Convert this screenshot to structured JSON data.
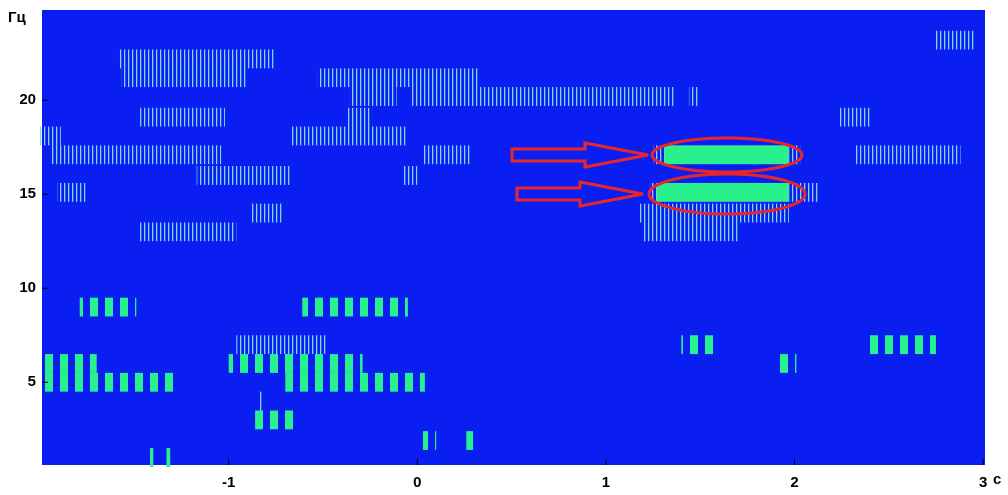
{
  "chart_data": {
    "type": "spectrogram",
    "x_unit": "с",
    "y_unit": "Гц",
    "xlim": [
      -1.99,
      3.01
    ],
    "ylim": [
      0.6,
      24.8
    ],
    "xticks": [
      -1,
      0,
      1,
      2,
      3
    ],
    "yticks": [
      5,
      10,
      15,
      20
    ],
    "background": "#0b1ef2",
    "band_height": 1,
    "stripe_color": "#7fd8e6",
    "bar_color": "#28f08c",
    "solid_color": "#28f08c",
    "stripe_spans": [
      [
        2.75,
        2.96,
        23.2
      ],
      [
        -1.59,
        -0.76,
        22.2
      ],
      [
        -1.57,
        -0.91,
        21.2
      ],
      [
        -0.53,
        0.32,
        21.2
      ],
      [
        -0.36,
        -0.11,
        20.2
      ],
      [
        -0.04,
        1.36,
        20.2
      ],
      [
        1.44,
        1.49,
        20.2
      ],
      [
        -1.47,
        -1.02,
        19.1
      ],
      [
        -0.37,
        -0.24,
        19.1
      ],
      [
        2.24,
        2.4,
        19.1
      ],
      [
        -2.01,
        -1.89,
        18.1
      ],
      [
        -0.67,
        -0.05,
        18.1
      ],
      [
        -1.95,
        -1.04,
        17.1
      ],
      [
        0.03,
        0.29,
        17.1
      ],
      [
        1.25,
        2.03,
        17.1
      ],
      [
        2.32,
        2.88,
        17.1
      ],
      [
        -1.17,
        -0.67,
        16.0
      ],
      [
        -0.08,
        0.0,
        16.0
      ],
      [
        -1.91,
        -1.76,
        15.1
      ],
      [
        1.23,
        2.13,
        15.1
      ],
      [
        -0.88,
        -0.72,
        14.0
      ],
      [
        1.17,
        1.97,
        14.0
      ],
      [
        -1.48,
        -0.96,
        13.0
      ],
      [
        1.2,
        1.71,
        13.0
      ],
      [
        -0.96,
        -0.48,
        7.0
      ],
      [
        -0.84,
        -0.82,
        4.0
      ]
    ],
    "bar_spans": [
      [
        -1.79,
        -1.49,
        9.0
      ],
      [
        -0.61,
        -0.05,
        9.0
      ],
      [
        1.4,
        1.6,
        7.0
      ],
      [
        2.4,
        2.75,
        7.0
      ],
      [
        -2.01,
        -1.7,
        6.0
      ],
      [
        -1.0,
        -0.29,
        6.0
      ],
      [
        1.91,
        2.01,
        6.0
      ],
      [
        -2.01,
        -1.29,
        5.0
      ],
      [
        -0.7,
        0.04,
        5.0
      ],
      [
        -0.86,
        -0.64,
        3.0
      ],
      [
        0.03,
        0.1,
        1.9
      ],
      [
        0.26,
        0.3,
        1.9
      ],
      [
        -1.43,
        -1.4,
        1.0
      ],
      [
        -1.33,
        -1.31,
        1.0
      ]
    ],
    "solid_spans": [
      [
        1.31,
        1.97,
        17.1
      ],
      [
        1.27,
        1.97,
        15.1
      ]
    ]
  }
}
